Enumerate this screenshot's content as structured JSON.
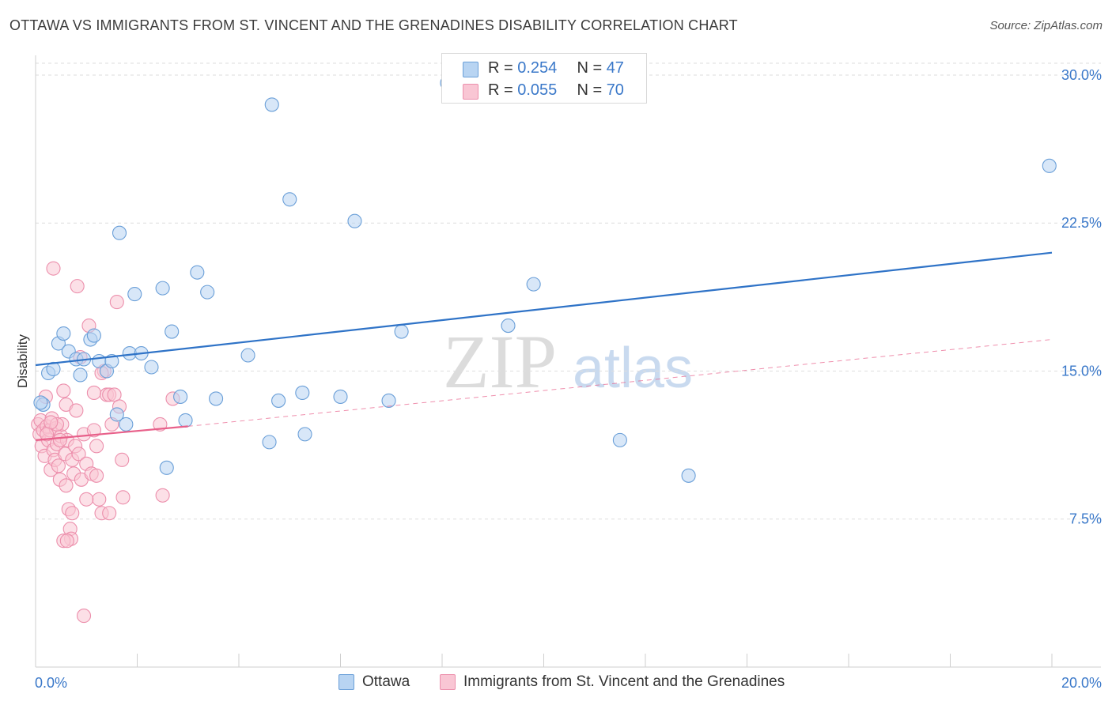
{
  "header": {
    "title": "OTTAWA VS IMMIGRANTS FROM ST. VINCENT AND THE GRENADINES DISABILITY CORRELATION CHART",
    "source": "Source: ZipAtlas.com"
  },
  "watermark": {
    "zip": "ZIP",
    "atlas": "atlas"
  },
  "stats": {
    "ottawa": {
      "r_label": "R =",
      "r_value": "0.254",
      "n_label": "N =",
      "n_value": "47"
    },
    "svg_immigrants": {
      "r_label": "R =",
      "r_value": "0.055",
      "n_label": "N =",
      "n_value": "70"
    }
  },
  "colors": {
    "ottawa_fill": "#b8d4f2",
    "ottawa_stroke": "#6a9fd8",
    "ottawa_line": "#2f73c7",
    "pink_fill": "#f9c6d4",
    "pink_stroke": "#ec8fac",
    "pink_line": "#e8608a",
    "axis_label": "#3a78c9",
    "grid": "#dedede"
  },
  "chart_data": {
    "type": "scatter",
    "title": "OTTAWA VS IMMIGRANTS FROM ST. VINCENT AND THE GRENADINES DISABILITY CORRELATION CHART",
    "xlabel": "",
    "ylabel": "Disability",
    "xlim": [
      0,
      20
    ],
    "ylim": [
      0,
      31
    ],
    "x_tick_labels": [
      "0.0%",
      "20.0%"
    ],
    "y_ticks": [
      7.5,
      15.0,
      22.5,
      30.0
    ],
    "y_tick_labels": [
      "7.5%",
      "15.0%",
      "22.5%",
      "30.0%"
    ],
    "grid": "horizontal dashed",
    "legend_position": "bottom",
    "series": [
      {
        "name": "Ottawa",
        "trend": {
          "x0": 0.0,
          "y0": 15.3,
          "x1": 20.0,
          "y1": 21.0
        },
        "points": [
          [
            0.15,
            13.3
          ],
          [
            0.25,
            14.9
          ],
          [
            0.35,
            15.1
          ],
          [
            0.45,
            16.4
          ],
          [
            0.55,
            16.9
          ],
          [
            0.65,
            16.0
          ],
          [
            0.8,
            15.6
          ],
          [
            0.88,
            14.8
          ],
          [
            0.95,
            15.6
          ],
          [
            1.08,
            16.6
          ],
          [
            1.15,
            16.8
          ],
          [
            1.25,
            15.5
          ],
          [
            1.4,
            15.0
          ],
          [
            1.5,
            15.5
          ],
          [
            1.6,
            12.8
          ],
          [
            1.65,
            22.0
          ],
          [
            1.78,
            12.3
          ],
          [
            1.85,
            15.9
          ],
          [
            1.95,
            18.9
          ],
          [
            2.08,
            15.9
          ],
          [
            2.28,
            15.2
          ],
          [
            2.5,
            19.2
          ],
          [
            2.58,
            10.1
          ],
          [
            2.68,
            17.0
          ],
          [
            2.85,
            13.7
          ],
          [
            2.95,
            12.5
          ],
          [
            3.18,
            20.0
          ],
          [
            3.38,
            19.0
          ],
          [
            3.55,
            13.6
          ],
          [
            4.18,
            15.8
          ],
          [
            4.6,
            11.4
          ],
          [
            4.65,
            28.5
          ],
          [
            4.78,
            13.5
          ],
          [
            5.0,
            23.7
          ],
          [
            5.25,
            13.9
          ],
          [
            5.3,
            11.8
          ],
          [
            6.0,
            13.7
          ],
          [
            6.28,
            22.6
          ],
          [
            6.95,
            13.5
          ],
          [
            7.2,
            17.0
          ],
          [
            8.1,
            29.6
          ],
          [
            9.3,
            17.3
          ],
          [
            9.8,
            19.4
          ],
          [
            11.5,
            11.5
          ],
          [
            12.85,
            9.7
          ],
          [
            19.95,
            25.4
          ],
          [
            0.1,
            13.4
          ]
        ]
      },
      {
        "name": "Immigrants from St. Vincent and the Grenadines",
        "trend": {
          "x0": 0.0,
          "y0": 11.5,
          "x1": 3.0,
          "y1": 12.2,
          "dash_x1": 20.0,
          "dash_y1": 16.6
        },
        "points": [
          [
            0.05,
            12.3
          ],
          [
            0.08,
            11.8
          ],
          [
            0.1,
            12.5
          ],
          [
            0.12,
            11.2
          ],
          [
            0.15,
            12.0
          ],
          [
            0.18,
            10.7
          ],
          [
            0.2,
            13.7
          ],
          [
            0.22,
            12.2
          ],
          [
            0.25,
            11.5
          ],
          [
            0.28,
            12.0
          ],
          [
            0.3,
            10.0
          ],
          [
            0.32,
            12.6
          ],
          [
            0.35,
            11.0
          ],
          [
            0.38,
            10.5
          ],
          [
            0.4,
            12.1
          ],
          [
            0.42,
            11.3
          ],
          [
            0.45,
            10.2
          ],
          [
            0.48,
            9.5
          ],
          [
            0.5,
            11.7
          ],
          [
            0.52,
            12.3
          ],
          [
            0.55,
            14.0
          ],
          [
            0.58,
            10.8
          ],
          [
            0.6,
            13.3
          ],
          [
            0.62,
            11.5
          ],
          [
            0.65,
            8.0
          ],
          [
            0.68,
            7.0
          ],
          [
            0.7,
            6.5
          ],
          [
            0.72,
            10.5
          ],
          [
            0.75,
            9.8
          ],
          [
            0.78,
            11.2
          ],
          [
            0.8,
            13.0
          ],
          [
            0.82,
            19.3
          ],
          [
            0.85,
            10.8
          ],
          [
            0.88,
            15.7
          ],
          [
            0.9,
            9.5
          ],
          [
            0.95,
            11.8
          ],
          [
            1.0,
            10.3
          ],
          [
            1.05,
            17.3
          ],
          [
            1.1,
            9.8
          ],
          [
            1.15,
            12.0
          ],
          [
            1.2,
            11.2
          ],
          [
            1.25,
            8.5
          ],
          [
            1.3,
            7.8
          ],
          [
            1.35,
            15.0
          ],
          [
            1.4,
            13.8
          ],
          [
            1.45,
            13.8
          ],
          [
            1.5,
            12.3
          ],
          [
            1.55,
            13.8
          ],
          [
            1.6,
            18.5
          ],
          [
            1.65,
            13.2
          ],
          [
            1.7,
            10.5
          ],
          [
            1.72,
            8.6
          ],
          [
            1.45,
            7.8
          ],
          [
            1.3,
            14.9
          ],
          [
            0.35,
            20.2
          ],
          [
            0.55,
            6.4
          ],
          [
            1.0,
            8.5
          ],
          [
            0.95,
            2.6
          ],
          [
            1.2,
            9.7
          ],
          [
            1.15,
            13.9
          ],
          [
            2.5,
            8.7
          ],
          [
            2.45,
            12.3
          ],
          [
            2.7,
            13.6
          ],
          [
            0.6,
            9.2
          ],
          [
            0.42,
            12.3
          ],
          [
            0.48,
            11.5
          ],
          [
            0.3,
            12.4
          ],
          [
            0.22,
            11.8
          ],
          [
            0.72,
            7.8
          ],
          [
            0.62,
            6.4
          ]
        ]
      }
    ]
  },
  "legend": {
    "ottawa_label": "Ottawa",
    "pink_label": "Immigrants from St. Vincent and the Grenadines"
  }
}
